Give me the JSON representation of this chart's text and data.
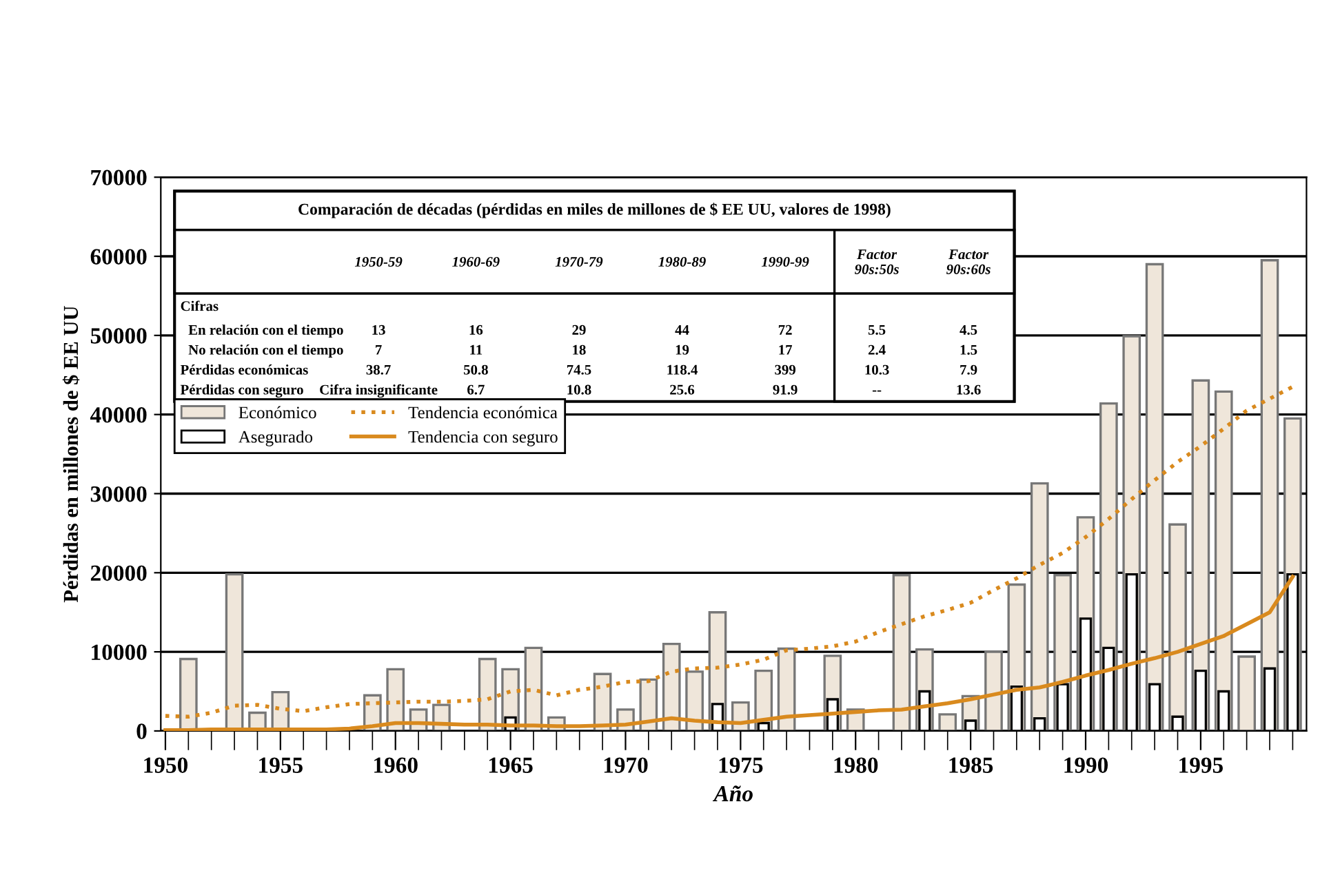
{
  "chart_data": {
    "type": "bar",
    "xlabel": "Año",
    "ylabel": "Pérdidas en millones de $ EE UU",
    "x": [
      1950,
      1951,
      1952,
      1953,
      1954,
      1955,
      1956,
      1957,
      1958,
      1959,
      1960,
      1961,
      1962,
      1963,
      1964,
      1965,
      1966,
      1967,
      1968,
      1969,
      1970,
      1971,
      1972,
      1973,
      1974,
      1975,
      1976,
      1977,
      1978,
      1979,
      1980,
      1981,
      1982,
      1983,
      1984,
      1985,
      1986,
      1987,
      1988,
      1989,
      1990,
      1991,
      1992,
      1993,
      1994,
      1995,
      1996,
      1997,
      1998,
      1999
    ],
    "series": [
      {
        "name": "Económico",
        "color": "#efe6da",
        "values": [
          null,
          9100,
          null,
          19800,
          2300,
          4900,
          null,
          null,
          null,
          4500,
          7800,
          2700,
          3300,
          null,
          9100,
          7800,
          10500,
          1700,
          null,
          7200,
          2700,
          6500,
          11000,
          7500,
          15000,
          3600,
          7600,
          10400,
          null,
          9500,
          2700,
          null,
          19700,
          10300,
          2100,
          4400,
          10000,
          18500,
          31300,
          19700,
          27000,
          41400,
          49900,
          59000,
          26100,
          44300,
          42900,
          9400,
          59500,
          39500
        ]
      },
      {
        "name": "Asegurado",
        "color": "#ffffff",
        "values": [
          null,
          null,
          null,
          null,
          null,
          null,
          null,
          null,
          null,
          null,
          null,
          null,
          null,
          null,
          null,
          1700,
          null,
          null,
          null,
          null,
          null,
          null,
          null,
          null,
          3400,
          null,
          1000,
          null,
          null,
          4000,
          null,
          null,
          null,
          5000,
          null,
          1300,
          null,
          5600,
          1600,
          5900,
          14200,
          10500,
          19800,
          5900,
          1800,
          7600,
          5000,
          null,
          7900,
          19800
        ]
      },
      {
        "name": "Tendencia económica",
        "type": "line",
        "line_style": "dotted",
        "color": "#d98a1e",
        "values": [
          1900,
          1800,
          2300,
          3200,
          3300,
          2800,
          2500,
          3000,
          3400,
          3500,
          3600,
          3700,
          3700,
          3800,
          4000,
          5000,
          5200,
          4500,
          5200,
          5600,
          6200,
          6300,
          7500,
          7900,
          8000,
          8400,
          9000,
          10200,
          10400,
          10700,
          11300,
          12500,
          13500,
          14500,
          15300,
          16200,
          17800,
          19300,
          21000,
          22500,
          24500,
          26800,
          29300,
          31700,
          34000,
          36000,
          38200,
          40500,
          42000,
          43500
        ]
      },
      {
        "name": "Tendencia con seguro",
        "type": "line",
        "line_style": "solid",
        "color": "#d98a1e",
        "values": [
          100,
          100,
          200,
          200,
          200,
          200,
          200,
          200,
          300,
          600,
          1000,
          1000,
          900,
          800,
          800,
          700,
          700,
          600,
          600,
          700,
          800,
          1200,
          1600,
          1300,
          1100,
          1000,
          1400,
          1800,
          2000,
          2200,
          2400,
          2600,
          2700,
          3100,
          3500,
          4000,
          4600,
          5200,
          5500,
          6200,
          7000,
          7700,
          8500,
          9200,
          10000,
          11000,
          12000,
          13500,
          15000,
          19500
        ]
      }
    ],
    "xlim": [
      1949.8,
      1999.6
    ],
    "xticks": [
      1950,
      1955,
      1960,
      1965,
      1970,
      1975,
      1980,
      1985,
      1990,
      1995
    ],
    "ylim": [
      0,
      70000
    ],
    "yticks": [
      0,
      10000,
      20000,
      30000,
      40000,
      50000,
      60000,
      70000
    ],
    "grid": "y",
    "legend": "top left",
    "annotations": [
      "Comparación de décadas (pérdidas en miles de millones de $ EE UU, valores de 1998)",
      "1950-59",
      "1960-69",
      "1970-79",
      "1980-89",
      "1990-99",
      "Factor\n90s:50s",
      "Factor\n90s:60s",
      "Cifras",
      "En relación con el tiempo",
      "13",
      "16",
      "29",
      "44",
      "72",
      "5.5",
      "4.5",
      "No relación con el tiempo",
      "7",
      "11",
      "18",
      "19",
      "17",
      "2.4",
      "1.5",
      "Pérdidas económicas",
      "38.7",
      "50.8",
      "74.5",
      "118.4",
      "399",
      "10.3",
      "7.9",
      "Pérdidas con seguro",
      "Cifra insignificante",
      "6.7",
      "10.8",
      "25.6",
      "91.9",
      "--",
      "13.6"
    ]
  }
}
